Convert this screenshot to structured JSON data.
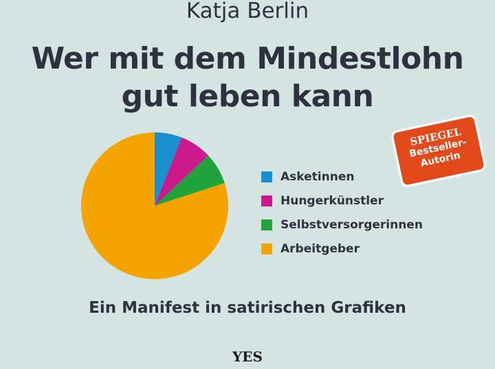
{
  "cover": {
    "author": "Katja Berlin",
    "title_line1": "Wer mit dem Mindestlohn",
    "title_line2": "gut leben kann",
    "subtitle": "Ein Manifest in satirischen Grafiken",
    "badge": {
      "line1": "SPIEGEL",
      "line2": "Bestseller-",
      "line3": "Autorin",
      "color": "#e24a1c"
    },
    "publisher": "YES",
    "background": "#d4e4e1"
  },
  "chart_data": {
    "type": "pie",
    "categories": [
      "Asketinnen",
      "Hungerkünstler",
      "Selbstversorgerinnen",
      "Arbeitgeber"
    ],
    "values": [
      6,
      7,
      7,
      80
    ],
    "colors": [
      "#1a8fd0",
      "#cc1a8c",
      "#1fa33a",
      "#f4a300"
    ],
    "start": "12 o'clock, clockwise",
    "legend": "right"
  }
}
